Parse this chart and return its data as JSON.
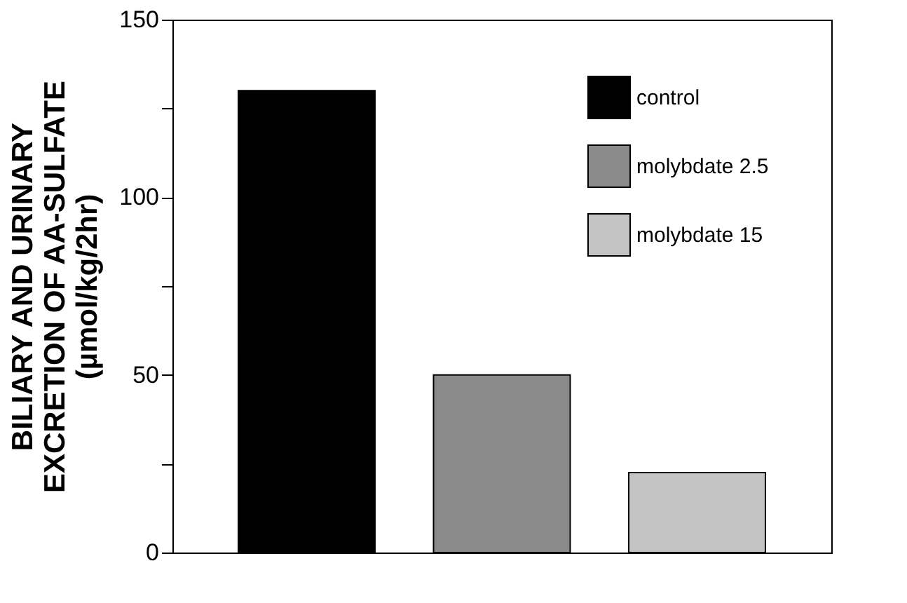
{
  "chart_data": {
    "type": "bar",
    "ylabel": "BILIARY AND URINARY\nEXCRETION OF AA-SULFATE\n(µmol/kg/2hr)",
    "categories": [
      null
    ],
    "series": [
      {
        "name": "control",
        "color": "#000000",
        "values": [
          130
        ]
      },
      {
        "name": "molybdate  2.5",
        "color": "#8a8a8a",
        "values": [
          50
        ]
      },
      {
        "name": "molybdate  15",
        "color": "#c4c4c4",
        "values": [
          22.5
        ]
      }
    ],
    "ylim": [
      0,
      150
    ],
    "yticks": [
      0,
      {
        "value": 25,
        "label": null
      },
      50,
      {
        "value": 75,
        "label": null
      },
      100,
      {
        "value": 125,
        "label": null
      },
      150
    ],
    "tick_labels": "y",
    "grid": false,
    "legend": "top right"
  }
}
